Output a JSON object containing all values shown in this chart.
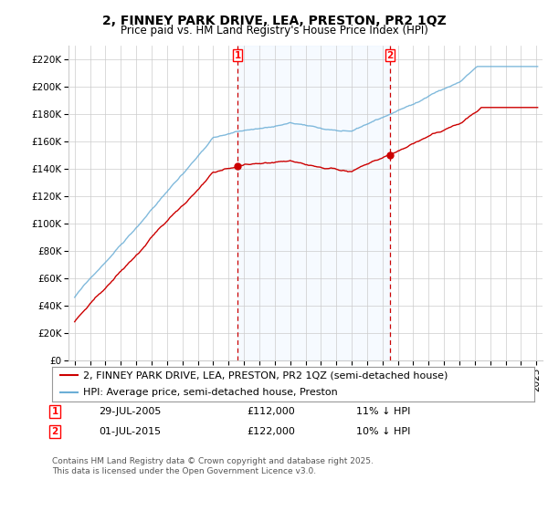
{
  "title": "2, FINNEY PARK DRIVE, LEA, PRESTON, PR2 1QZ",
  "subtitle": "Price paid vs. HM Land Registry's House Price Index (HPI)",
  "legend_line1": "2, FINNEY PARK DRIVE, LEA, PRESTON, PR2 1QZ (semi-detached house)",
  "legend_line2": "HPI: Average price, semi-detached house, Preston",
  "footnote": "Contains HM Land Registry data © Crown copyright and database right 2025.\nThis data is licensed under the Open Government Licence v3.0.",
  "sale1_label": "1",
  "sale1_date": "29-JUL-2005",
  "sale1_price": "£112,000",
  "sale1_hpi": "11% ↓ HPI",
  "sale2_label": "2",
  "sale2_date": "01-JUL-2015",
  "sale2_price": "£122,000",
  "sale2_hpi": "10% ↓ HPI",
  "sale1_year": 2005.58,
  "sale2_year": 2015.5,
  "sale1_value": 112000,
  "sale2_value": 122000,
  "ylim": [
    0,
    230000
  ],
  "yticks": [
    0,
    20000,
    40000,
    60000,
    80000,
    100000,
    120000,
    140000,
    160000,
    180000,
    200000,
    220000
  ],
  "ytick_labels": [
    "£0",
    "£20K",
    "£40K",
    "£60K",
    "£80K",
    "£100K",
    "£120K",
    "£140K",
    "£160K",
    "£180K",
    "£200K",
    "£220K"
  ],
  "hpi_color": "#6baed6",
  "price_color": "#cc0000",
  "shade_color": "#ddeeff",
  "background_color": "#ffffff",
  "grid_color": "#cccccc",
  "title_fontsize": 10,
  "subtitle_fontsize": 8.5,
  "axis_fontsize": 7.5,
  "legend_fontsize": 8,
  "note_fontsize": 6.5
}
